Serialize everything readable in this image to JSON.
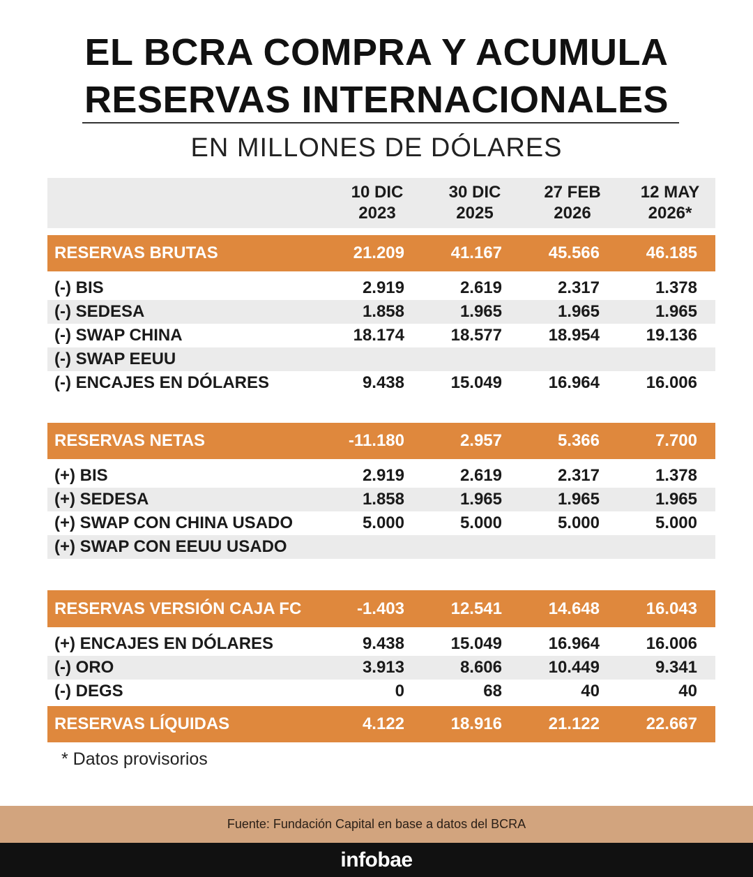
{
  "chart_data": {
    "type": "table",
    "title_line1": "EL BCRA COMPRA Y ACUMULA",
    "title_line2": "RESERVAS INTERNACIONALES",
    "subtitle": "EN MILLONES DE DÓLARES",
    "columns": [
      {
        "line1": "10 DIC",
        "line2": "2023"
      },
      {
        "line1": "30 DIC",
        "line2": "2025"
      },
      {
        "line1": "27 FEB",
        "line2": "2026"
      },
      {
        "line1": "12 MAY",
        "line2": "2026*"
      }
    ],
    "rows": [
      {
        "kind": "band",
        "label": "RESERVAS BRUTAS",
        "values": [
          "21.209",
          "41.167",
          "45.566",
          "46.185"
        ]
      },
      {
        "kind": "detail",
        "label": "(-) BIS",
        "values": [
          "2.919",
          "2.619",
          "2.317",
          "1.378"
        ]
      },
      {
        "kind": "detail",
        "label": "(-) SEDESA",
        "values": [
          "1.858",
          "1.965",
          "1.965",
          "1.965"
        ]
      },
      {
        "kind": "detail",
        "label": "(-) SWAP CHINA",
        "values": [
          "18.174",
          "18.577",
          "18.954",
          "19.136"
        ]
      },
      {
        "kind": "detail",
        "label": "(-) SWAP EEUU",
        "values": [
          "",
          "",
          "",
          ""
        ]
      },
      {
        "kind": "detail",
        "label": "(-) ENCAJES EN DÓLARES",
        "values": [
          "9.438",
          "15.049",
          "16.964",
          "16.006"
        ]
      },
      {
        "kind": "band",
        "label": "RESERVAS NETAS",
        "values": [
          "-11.180",
          "2.957",
          "5.366",
          "7.700"
        ]
      },
      {
        "kind": "detail",
        "label": "(+) BIS",
        "values": [
          "2.919",
          "2.619",
          "2.317",
          "1.378"
        ]
      },
      {
        "kind": "detail",
        "label": "(+) SEDESA",
        "values": [
          "1.858",
          "1.965",
          "1.965",
          "1.965"
        ]
      },
      {
        "kind": "detail",
        "label": "(+) SWAP CON CHINA USADO",
        "values": [
          "5.000",
          "5.000",
          "5.000",
          "5.000"
        ]
      },
      {
        "kind": "detail",
        "label": "(+) SWAP CON EEUU USADO",
        "values": [
          "",
          "",
          "",
          ""
        ]
      },
      {
        "kind": "band",
        "label": "RESERVAS VERSIÓN CAJA FC",
        "values": [
          "-1.403",
          "12.541",
          "14.648",
          "16.043"
        ]
      },
      {
        "kind": "detail",
        "label": "(+) ENCAJES EN DÓLARES",
        "values": [
          "9.438",
          "15.049",
          "16.964",
          "16.006"
        ]
      },
      {
        "kind": "detail",
        "label": "(-) ORO",
        "values": [
          "3.913",
          "8.606",
          "10.449",
          "9.341"
        ]
      },
      {
        "kind": "detail",
        "label": "(-) DEGS",
        "values": [
          "0",
          "68",
          "40",
          "40"
        ]
      },
      {
        "kind": "band",
        "label": "RESERVAS LÍQUIDAS",
        "values": [
          "4.122",
          "18.916",
          "21.122",
          "22.667"
        ]
      }
    ],
    "footnote": "*  Datos provisorios"
  },
  "source": "Fuente: Fundación Capital en base a datos del BCRA",
  "brand": "infobae",
  "colors": {
    "band": "#df883d",
    "stripe": "#ebebeb",
    "source_bar": "#d2a47e",
    "logo_bar": "#111111"
  }
}
